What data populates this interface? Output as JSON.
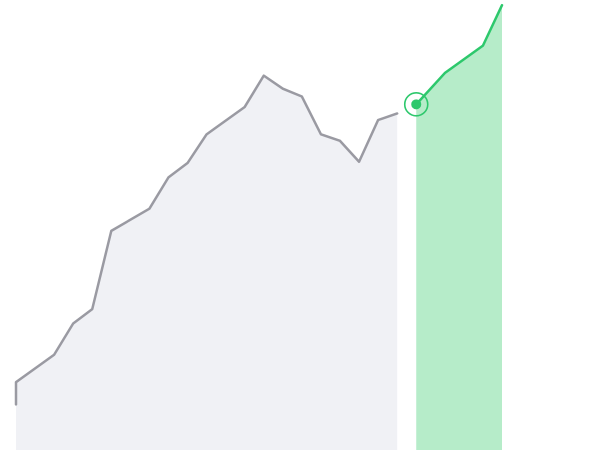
{
  "chart_data": {
    "type": "area",
    "title": "",
    "xlabel": "",
    "ylabel": "",
    "ylim": [
      0,
      345
    ],
    "xlim": [
      0,
      25.5
    ],
    "grid": false,
    "legend": "none",
    "highlight_index": 21,
    "series": [
      {
        "segment": "history",
        "line_color": "#9a9aa2",
        "fill_color": "#f0f1f5",
        "points": [
          [
            0,
            35
          ],
          [
            0,
            52
          ],
          [
            2,
            73
          ],
          [
            3,
            97
          ],
          [
            4,
            108
          ],
          [
            5,
            168
          ],
          [
            7,
            185
          ],
          [
            8,
            209
          ],
          [
            9,
            220
          ],
          [
            10,
            242
          ],
          [
            12,
            263
          ],
          [
            13,
            287
          ],
          [
            14,
            277
          ],
          [
            15,
            271
          ],
          [
            16,
            242
          ],
          [
            17,
            237
          ],
          [
            18,
            221
          ],
          [
            19,
            253
          ],
          [
            20,
            258
          ]
        ]
      },
      {
        "segment": "forecast",
        "line_color": "#2dc86c",
        "fill_color": "#b6ecc9",
        "points": [
          [
            21,
            265
          ],
          [
            22.5,
            289
          ],
          [
            24.5,
            310
          ],
          [
            25.5,
            341
          ]
        ]
      }
    ],
    "marker": {
      "x": 21,
      "y": 265,
      "color": "#2dc86c"
    }
  }
}
